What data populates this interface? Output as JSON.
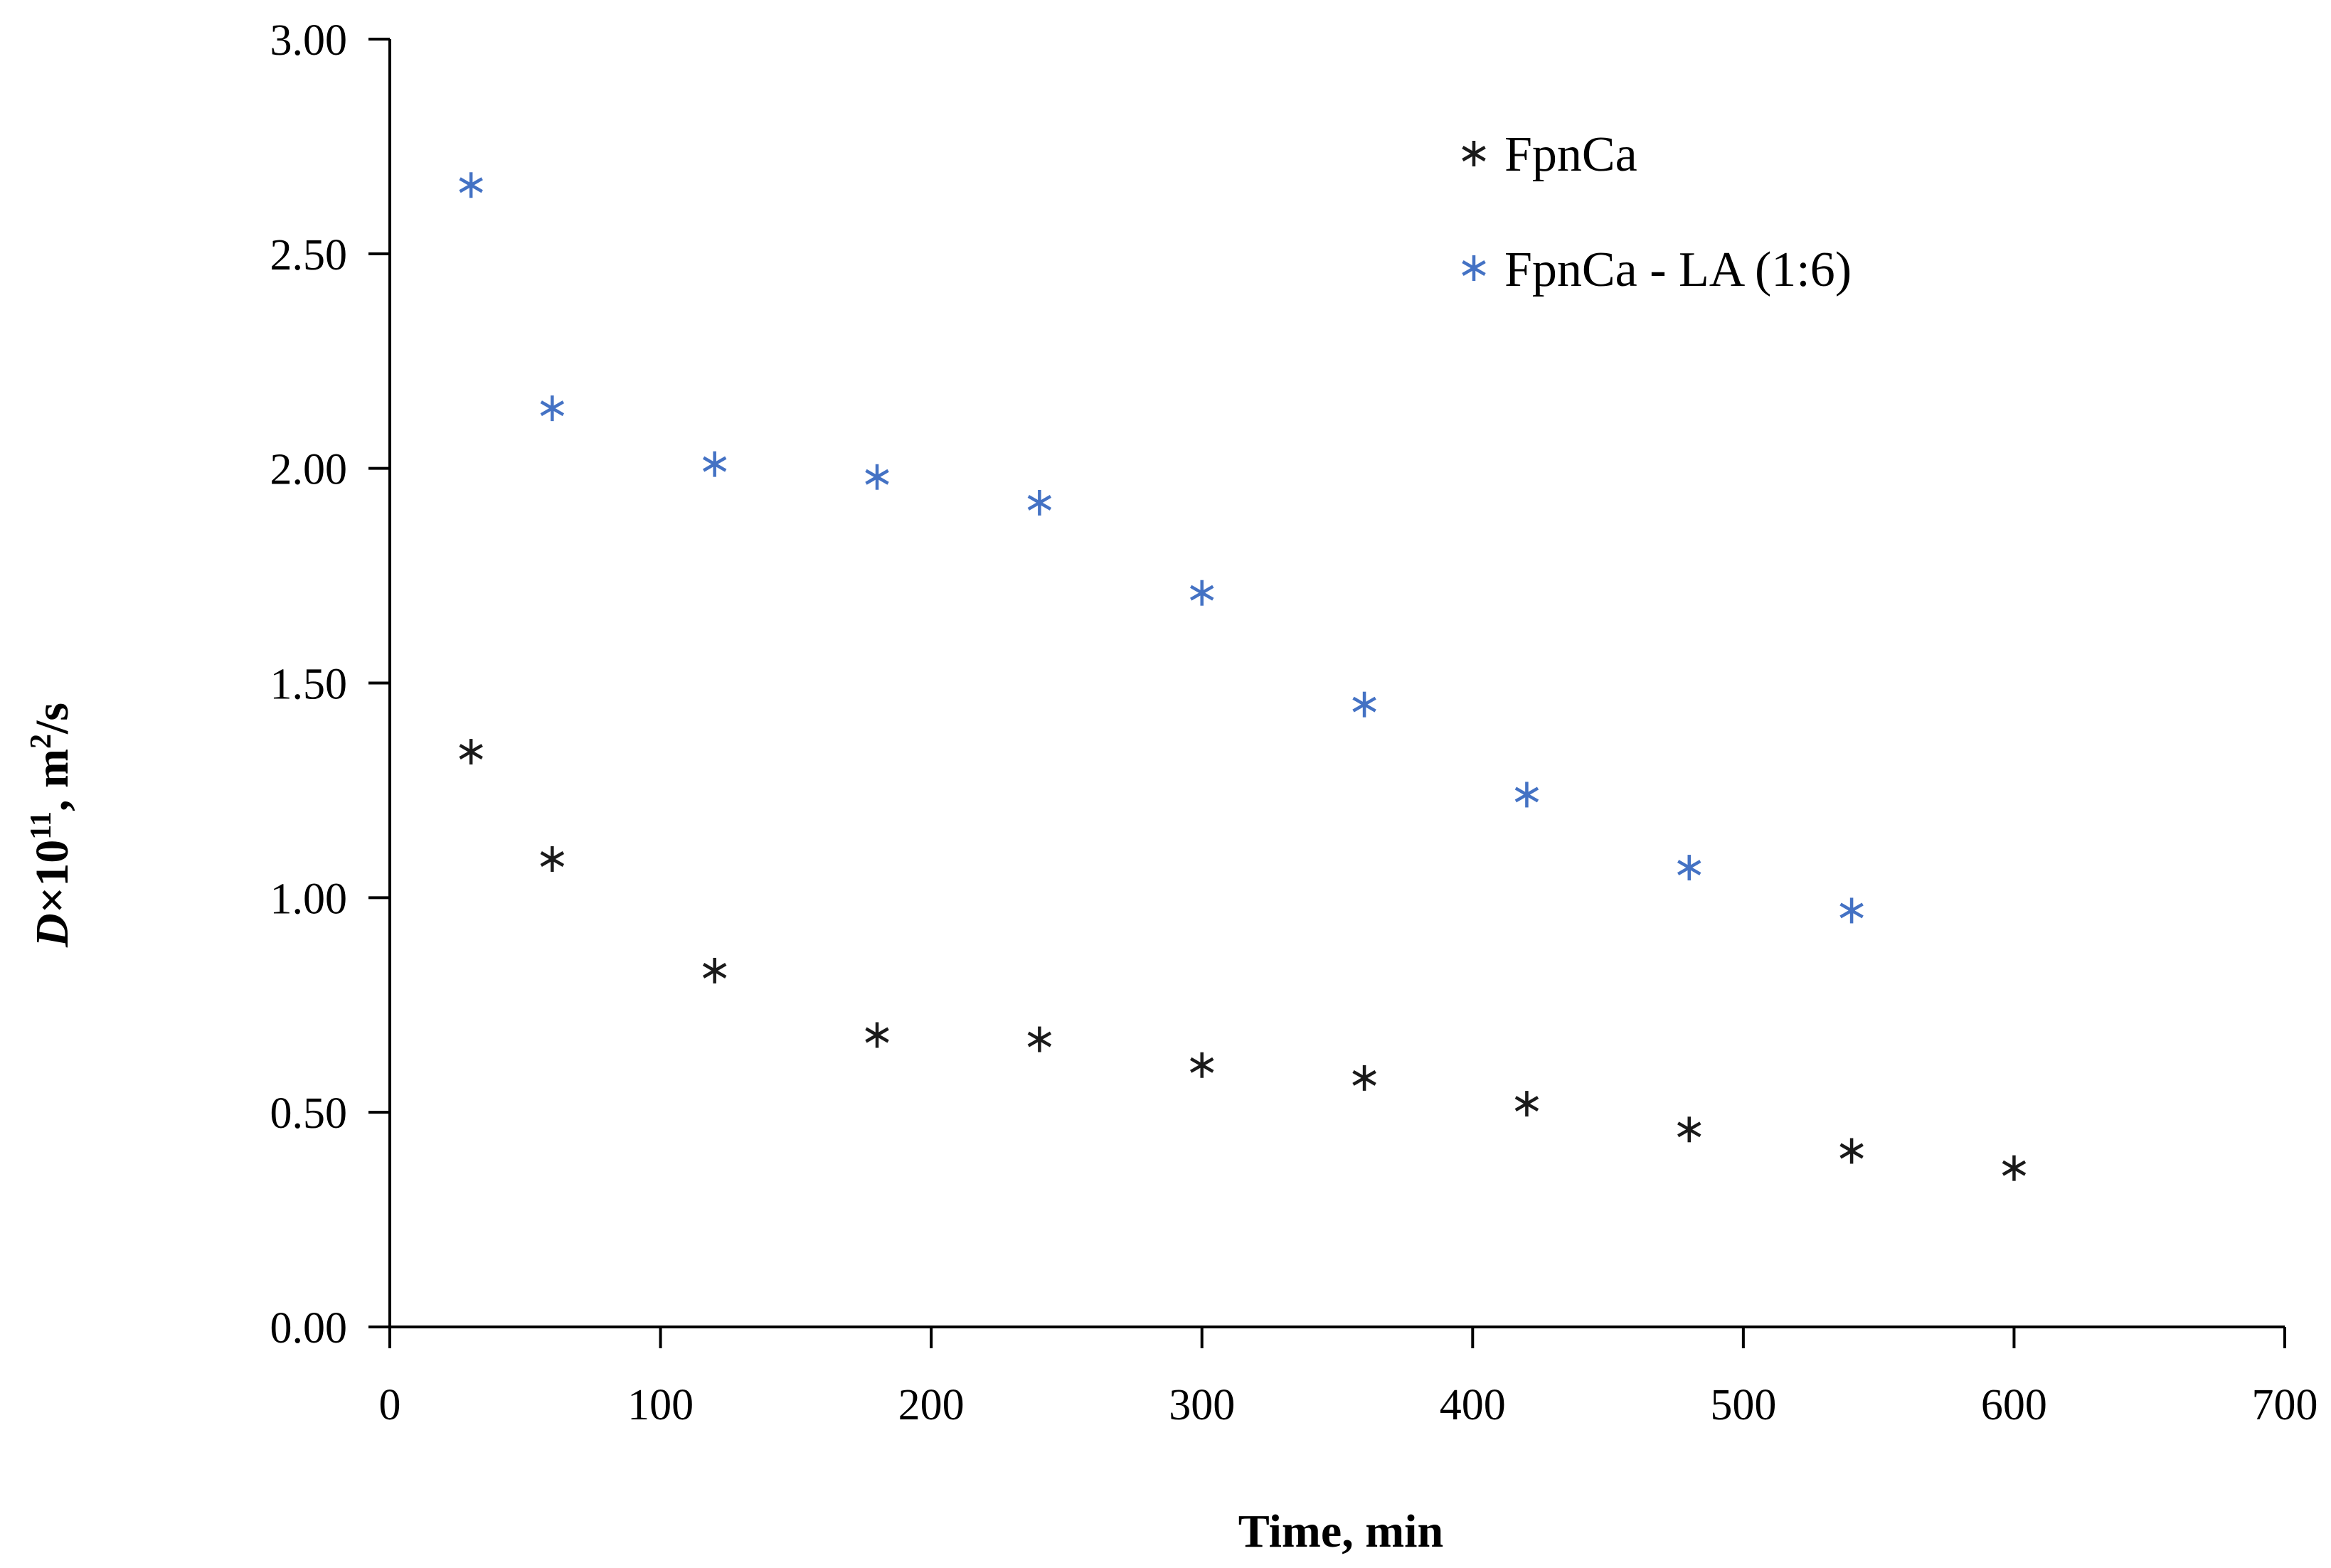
{
  "chart_data": {
    "type": "scatter",
    "title": "",
    "xlabel": "Time, min",
    "ylabel": {
      "variable": "D",
      "times": "×10",
      "exponent": "11",
      "units_prefix": ", m",
      "units_power": "2",
      "units_suffix": "/s"
    },
    "xlim": [
      0,
      700
    ],
    "ylim": [
      0,
      3
    ],
    "x_ticks": [
      0,
      100,
      200,
      300,
      400,
      500,
      600,
      700
    ],
    "x_tick_labels": [
      "0",
      "100",
      "200",
      "300",
      "400",
      "500",
      "600",
      "700"
    ],
    "y_ticks": [
      0,
      0.5,
      1,
      1.5,
      2,
      2.5,
      3
    ],
    "y_tick_labels": [
      "0.00",
      "0.50",
      "1.00",
      "1.50",
      "2.00",
      "2.50",
      "3.00"
    ],
    "grid": false,
    "legend_position": "top-right",
    "series": [
      {
        "name": "FpnCa",
        "color": "#1a1a1a",
        "marker": "asterisk",
        "x": [
          30,
          60,
          120,
          180,
          240,
          300,
          360,
          420,
          480,
          540,
          600
        ],
        "y": [
          1.34,
          1.09,
          0.83,
          0.68,
          0.67,
          0.61,
          0.58,
          0.52,
          0.46,
          0.41,
          0.37
        ]
      },
      {
        "name": "FpnCa - LA (1:6)",
        "color": "#4472c4",
        "marker": "asterisk",
        "x": [
          30,
          60,
          120,
          180,
          240,
          300,
          360,
          420,
          480,
          540
        ],
        "y": [
          2.66,
          2.14,
          2.01,
          1.98,
          1.92,
          1.71,
          1.45,
          1.24,
          1.07,
          0.97
        ]
      }
    ]
  }
}
